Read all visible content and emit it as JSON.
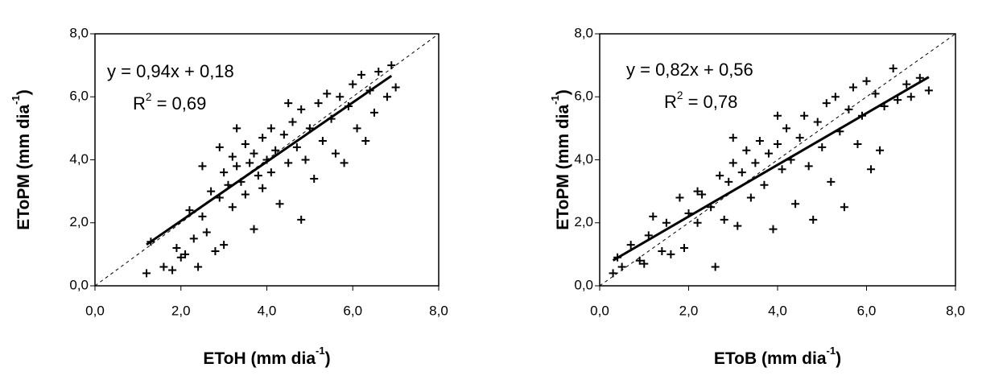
{
  "chart_data": [
    {
      "type": "scatter",
      "x_label": [
        "EToH (mm dia",
        "-1",
        ")"
      ],
      "y_label": [
        "EToPM (mm dia",
        "-1",
        ")"
      ],
      "equation": "y = 0,94x + 0,18",
      "r2_label": [
        "R",
        "2",
        " = 0,69"
      ],
      "x": [
        1.2,
        1.3,
        1.6,
        1.8,
        1.9,
        2.0,
        2.1,
        2.2,
        2.3,
        2.4,
        2.5,
        2.6,
        2.7,
        2.8,
        2.9,
        3.0,
        3.0,
        3.1,
        3.2,
        3.2,
        3.3,
        3.4,
        3.5,
        3.5,
        3.6,
        3.7,
        3.7,
        3.8,
        3.9,
        3.9,
        4.0,
        4.1,
        4.1,
        4.2,
        4.3,
        4.4,
        4.5,
        4.6,
        4.7,
        4.8,
        4.8,
        4.9,
        5.0,
        5.1,
        5.2,
        5.3,
        5.4,
        5.5,
        5.6,
        5.7,
        5.8,
        5.9,
        6.0,
        6.1,
        6.2,
        6.3,
        6.4,
        6.5,
        6.6,
        6.8,
        6.9,
        7.0,
        2.5,
        3.3,
        4.5,
        2.9
      ],
      "values": [
        0.4,
        1.4,
        0.6,
        0.5,
        1.2,
        0.9,
        1.0,
        2.4,
        1.5,
        0.6,
        2.2,
        1.7,
        3.0,
        1.1,
        2.8,
        3.6,
        1.3,
        3.2,
        4.1,
        2.5,
        3.8,
        3.3,
        4.5,
        2.9,
        3.9,
        1.8,
        4.2,
        3.5,
        4.7,
        3.1,
        4.0,
        5.0,
        3.6,
        4.3,
        2.6,
        4.8,
        3.9,
        5.2,
        4.4,
        2.1,
        5.6,
        4.0,
        5.0,
        3.4,
        5.8,
        4.6,
        6.1,
        5.3,
        4.2,
        6.0,
        3.9,
        5.7,
        6.4,
        5.0,
        6.7,
        4.6,
        6.2,
        5.5,
        6.8,
        6.0,
        7.0,
        6.3,
        3.8,
        5.0,
        5.8,
        4.4
      ],
      "color": "#000000",
      "trendline": {
        "slope": 0.94,
        "intercept": 0.18,
        "x_range": [
          1.2,
          6.9
        ]
      },
      "identity_line": true,
      "xlim": [
        0,
        8
      ],
      "ylim": [
        0,
        8
      ],
      "xticks": [
        {
          "value": 0,
          "label": "0,0"
        },
        {
          "value": 2,
          "label": "2,0"
        },
        {
          "value": 4,
          "label": "4,0"
        },
        {
          "value": 6,
          "label": "6,0"
        },
        {
          "value": 8,
          "label": "8,0"
        }
      ],
      "yticks": [
        {
          "value": 0,
          "label": "0,0"
        },
        {
          "value": 2,
          "label": "2,0"
        },
        {
          "value": 4,
          "label": "4,0"
        },
        {
          "value": 6,
          "label": "6,0"
        },
        {
          "value": 8,
          "label": "8,0"
        }
      ]
    },
    {
      "type": "scatter",
      "x_label": [
        "EToB (mm dia",
        "-1",
        ")"
      ],
      "y_label": [
        "EToPM (mm dia",
        "-1",
        ")"
      ],
      "equation": "y = 0,82x + 0,56",
      "r2_label": [
        "R",
        "2",
        " = 0,78"
      ],
      "x": [
        0.3,
        0.4,
        0.5,
        0.7,
        0.9,
        1.0,
        1.1,
        1.2,
        1.4,
        1.5,
        1.6,
        1.8,
        1.9,
        2.0,
        2.2,
        2.3,
        2.5,
        2.6,
        2.7,
        2.8,
        2.9,
        3.0,
        3.1,
        3.2,
        3.3,
        3.4,
        3.5,
        3.6,
        3.7,
        3.8,
        3.9,
        4.0,
        4.1,
        4.2,
        4.3,
        4.4,
        4.5,
        4.6,
        4.7,
        4.8,
        4.9,
        5.0,
        5.1,
        5.2,
        5.3,
        5.4,
        5.5,
        5.6,
        5.7,
        5.8,
        5.9,
        6.0,
        6.1,
        6.2,
        6.3,
        6.4,
        6.6,
        6.7,
        6.9,
        7.0,
        7.2,
        7.4,
        3.0,
        4.0,
        2.2
      ],
      "values": [
        0.4,
        0.9,
        0.6,
        1.3,
        0.8,
        0.7,
        1.6,
        2.2,
        1.1,
        2.0,
        1.0,
        2.8,
        1.2,
        2.3,
        2.0,
        2.9,
        2.5,
        0.6,
        3.5,
        2.1,
        3.3,
        3.9,
        1.9,
        3.6,
        4.3,
        2.8,
        3.9,
        4.6,
        3.2,
        4.2,
        1.8,
        4.5,
        3.7,
        5.0,
        4.0,
        2.6,
        4.7,
        5.4,
        3.8,
        2.1,
        5.2,
        4.4,
        5.8,
        3.3,
        6.0,
        4.9,
        2.5,
        5.6,
        6.3,
        4.5,
        5.4,
        6.5,
        3.7,
        6.1,
        4.3,
        5.7,
        6.9,
        5.9,
        6.4,
        6.0,
        6.6,
        6.2,
        4.7,
        5.4,
        3.0
      ],
      "color": "#000000",
      "trendline": {
        "slope": 0.82,
        "intercept": 0.56,
        "x_range": [
          0.3,
          7.4
        ]
      },
      "identity_line": true,
      "xlim": [
        0,
        8
      ],
      "ylim": [
        0,
        8
      ],
      "xticks": [
        {
          "value": 0,
          "label": "0,0"
        },
        {
          "value": 2,
          "label": "2,0"
        },
        {
          "value": 4,
          "label": "4,0"
        },
        {
          "value": 6,
          "label": "6,0"
        },
        {
          "value": 8,
          "label": "8,0"
        }
      ],
      "yticks": [
        {
          "value": 0,
          "label": "0,0"
        },
        {
          "value": 2,
          "label": "2,0"
        },
        {
          "value": 4,
          "label": "4,0"
        },
        {
          "value": 6,
          "label": "6,0"
        },
        {
          "value": 8,
          "label": "8,0"
        }
      ]
    }
  ]
}
